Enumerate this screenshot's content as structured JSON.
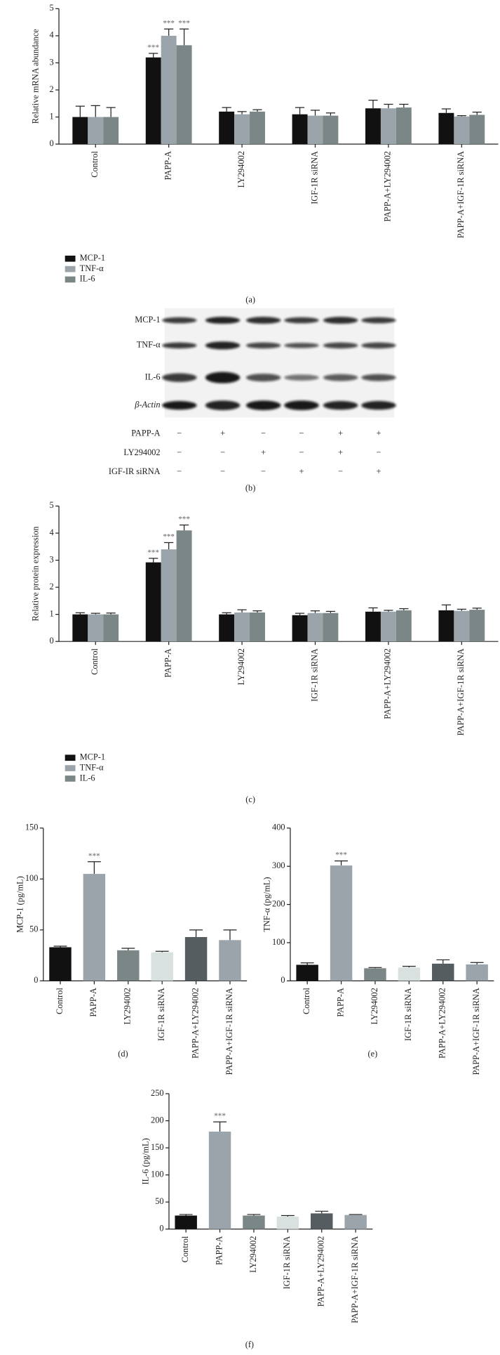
{
  "chart_data": [
    {
      "type": "bar",
      "y_label": "Relative mRNA abundance",
      "panel_label": "(a)",
      "categories": [
        "Control",
        "PAPP-A",
        "LY294002",
        "IGF-1R siRNA",
        "PAPP-A+LY294002",
        "PAPP-A+IGF-1R siRNA"
      ],
      "series": [
        {
          "name": "MCP-1",
          "color": "#111111",
          "values": [
            1.0,
            3.2,
            1.2,
            1.1,
            1.32,
            1.15
          ],
          "errors": [
            0.4,
            0.15,
            0.15,
            0.25,
            0.3,
            0.15
          ],
          "significance": [
            null,
            "***",
            null,
            null,
            null,
            null
          ]
        },
        {
          "name": "TNF-α",
          "color": "#9ba4ab",
          "values": [
            1.0,
            4.0,
            1.1,
            1.05,
            1.32,
            1.02
          ],
          "errors": [
            0.42,
            0.25,
            0.1,
            0.2,
            0.15,
            0.03
          ],
          "significance": [
            null,
            "***",
            null,
            null,
            null,
            null
          ]
        },
        {
          "name": "IL-6",
          "color": "#7b8787",
          "values": [
            1.0,
            3.65,
            1.2,
            1.05,
            1.35,
            1.08
          ],
          "errors": [
            0.35,
            0.6,
            0.07,
            0.1,
            0.12,
            0.1
          ],
          "significance": [
            null,
            "***",
            null,
            null,
            null,
            null
          ]
        }
      ],
      "ylim": [
        0,
        5
      ],
      "yticks": [
        0,
        1,
        2,
        3,
        4,
        5
      ]
    },
    {
      "type": "bar",
      "y_label": "Relative protein expression",
      "panel_label": "(c)",
      "categories": [
        "Control",
        "PAPP-A",
        "LY294002",
        "IGF-1R siRNA",
        "PAPP-A+LY294002",
        "PAPP-A+IGF-1R siRNA"
      ],
      "series": [
        {
          "name": "MCP-1",
          "color": "#111111",
          "values": [
            1.0,
            2.92,
            1.0,
            0.97,
            1.1,
            1.15
          ],
          "errors": [
            0.06,
            0.15,
            0.06,
            0.07,
            0.14,
            0.2
          ],
          "significance": [
            null,
            "***",
            null,
            null,
            null,
            null
          ]
        },
        {
          "name": "TNF-α",
          "color": "#9ba4ab",
          "values": [
            1.0,
            3.4,
            1.07,
            1.05,
            1.1,
            1.13
          ],
          "errors": [
            0.04,
            0.25,
            0.1,
            0.08,
            0.05,
            0.06
          ],
          "significance": [
            null,
            "***",
            null,
            null,
            null,
            null
          ]
        },
        {
          "name": "IL-6",
          "color": "#7b8787",
          "values": [
            1.0,
            4.1,
            1.07,
            1.05,
            1.15,
            1.17
          ],
          "errors": [
            0.05,
            0.2,
            0.06,
            0.06,
            0.06,
            0.06
          ],
          "significance": [
            null,
            "***",
            null,
            null,
            null,
            null
          ]
        }
      ],
      "ylim": [
        0,
        5
      ],
      "yticks": [
        0,
        1,
        2,
        3,
        4,
        5
      ]
    },
    {
      "type": "bar",
      "y_label": "MCP-1 (pg/mL)",
      "panel_label": "(d)",
      "categories": [
        "Control",
        "PAPP-A",
        "LY294002",
        "IGF-1R siRNA",
        "PAPP-A+LY294002",
        "PAPP-A+IGF-1R siRNA"
      ],
      "values": [
        33,
        105,
        30,
        28,
        43,
        40
      ],
      "errors": [
        1,
        12,
        2,
        1,
        7,
        10
      ],
      "significance": [
        null,
        "***",
        null,
        null,
        null,
        null
      ],
      "colors": [
        "#111111",
        "#9ba4ab",
        "#7b8787",
        "#d9e1e0",
        "#555d60",
        "#9ba4ab"
      ],
      "ylim": [
        0,
        150
      ],
      "yticks": [
        0,
        50,
        100,
        150
      ]
    },
    {
      "type": "bar",
      "y_label": "TNF-α (pg/mL)",
      "panel_label": "(e)",
      "categories": [
        "Control",
        "PAPP-A",
        "LY294002",
        "IGF-1R siRNA",
        "PAPP-A+LY294002",
        "PAPP-A+IGF-1R siRNA"
      ],
      "values": [
        42,
        302,
        33,
        35,
        45,
        43
      ],
      "errors": [
        5,
        12,
        2,
        3,
        10,
        5
      ],
      "significance": [
        null,
        "***",
        null,
        null,
        null,
        null
      ],
      "colors": [
        "#111111",
        "#9ba4ab",
        "#7b8787",
        "#d9e1e0",
        "#555d60",
        "#9ba4ab"
      ],
      "ylim": [
        0,
        400
      ],
      "yticks": [
        0,
        100,
        200,
        300,
        400
      ]
    },
    {
      "type": "bar",
      "y_label": "IL-6 (pg/mL)",
      "panel_label": "(f)",
      "categories": [
        "Control",
        "PAPP-A",
        "LY294002",
        "IGF-1R siRNA",
        "PAPP-A+LY294002",
        "PAPP-A+IGF-1R siRNA"
      ],
      "values": [
        25,
        180,
        25,
        23,
        29,
        26
      ],
      "errors": [
        2,
        18,
        2,
        2,
        4,
        1
      ],
      "significance": [
        null,
        "***",
        null,
        null,
        null,
        null
      ],
      "colors": [
        "#111111",
        "#9ba4ab",
        "#7b8787",
        "#d9e1e0",
        "#555d60",
        "#9ba4ab"
      ],
      "ylim": [
        0,
        250
      ],
      "yticks": [
        0,
        50,
        100,
        150,
        200,
        250
      ]
    }
  ],
  "blot": {
    "panel_label": "(b)",
    "proteins": [
      "MCP-1",
      "TNF-α",
      "IL-6",
      "β-Actin"
    ],
    "treatments": [
      {
        "name": "PAPP-A",
        "signs": [
          "−",
          "+",
          "−",
          "−",
          "+",
          "+"
        ]
      },
      {
        "name": "LY294002",
        "signs": [
          "−",
          "−",
          "+",
          "−",
          "+",
          "−"
        ]
      },
      {
        "name": "IGF-IR siRNA",
        "signs": [
          "−",
          "−",
          "−",
          "+",
          "−",
          "+"
        ]
      }
    ]
  }
}
